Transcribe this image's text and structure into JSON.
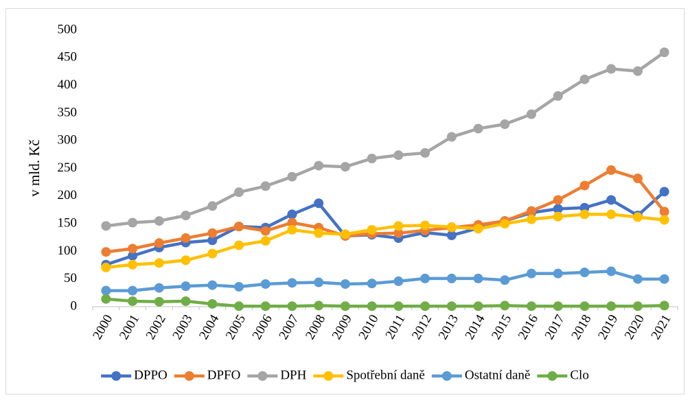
{
  "chart_data": {
    "type": "line",
    "y_label": "v mld. Kč",
    "categories": [
      "2000",
      "2001",
      "2002",
      "2003",
      "2004",
      "2005",
      "2006",
      "2007",
      "2008",
      "2009",
      "2010",
      "2011",
      "2012",
      "2013",
      "2014",
      "2015",
      "2016",
      "2017",
      "2018",
      "2019",
      "2020",
      "2021"
    ],
    "series": [
      {
        "name": "DPPO",
        "color": "#4472c4",
        "values": [
          76,
          92,
          107,
          116,
          120,
          145,
          143,
          167,
          187,
          128,
          130,
          124,
          134,
          129,
          142,
          155,
          170,
          177,
          179,
          193,
          165,
          208
        ]
      },
      {
        "name": "DPFO",
        "color": "#ed7d31",
        "values": [
          99,
          105,
          115,
          124,
          133,
          145,
          137,
          152,
          143,
          128,
          132,
          133,
          138,
          143,
          148,
          155,
          173,
          193,
          219,
          247,
          232,
          172
        ]
      },
      {
        "name": "DPH",
        "color": "#a5a5a5",
        "values": [
          146,
          152,
          155,
          165,
          182,
          207,
          218,
          235,
          255,
          253,
          268,
          274,
          278,
          307,
          322,
          330,
          348,
          381,
          411,
          430,
          426,
          460
        ]
      },
      {
        "name": "Spotřební daně",
        "color": "#ffc000",
        "values": [
          71,
          76,
          79,
          84,
          96,
          111,
          119,
          139,
          133,
          131,
          139,
          146,
          147,
          144,
          141,
          150,
          158,
          163,
          167,
          167,
          162,
          157
        ]
      },
      {
        "name": "Ostatní daně",
        "color": "#5b9bd5",
        "values": [
          29,
          29,
          34,
          37,
          39,
          36,
          41,
          43,
          44,
          41,
          42,
          46,
          51,
          51,
          51,
          48,
          60,
          60,
          62,
          64,
          50,
          50
        ]
      },
      {
        "name": "Clo",
        "color": "#70ad47",
        "values": [
          14,
          10,
          9,
          10,
          5,
          1,
          1,
          1,
          2,
          1,
          1,
          1,
          1,
          1,
          1,
          2,
          1,
          1,
          1,
          1,
          1,
          2
        ]
      }
    ],
    "ylim": [
      0,
      500
    ],
    "yticks": [
      0,
      50,
      100,
      150,
      200,
      250,
      300,
      350,
      400,
      450,
      500
    ],
    "grid": false,
    "legend": "bottom"
  }
}
